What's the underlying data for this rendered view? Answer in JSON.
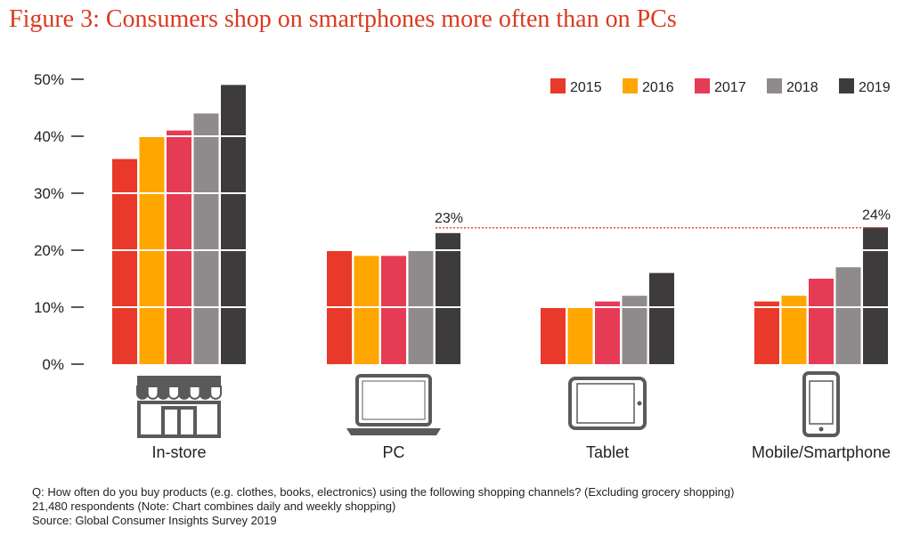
{
  "chart_data": {
    "type": "bar",
    "title": "Figure 3: Consumers shop on smartphones more often than on PCs",
    "categories": [
      "In-store",
      "PC",
      "Tablet",
      "Mobile/Smartphone"
    ],
    "series": [
      {
        "name": "2015",
        "color": "#e8392a",
        "values": [
          36,
          20,
          10,
          11
        ]
      },
      {
        "name": "2016",
        "color": "#ffa600",
        "values": [
          40,
          19,
          10,
          12
        ]
      },
      {
        "name": "2017",
        "color": "#e63b55",
        "values": [
          41,
          19,
          11,
          15
        ]
      },
      {
        "name": "2018",
        "color": "#8f8b8c",
        "values": [
          44,
          20,
          12,
          17
        ]
      },
      {
        "name": "2019",
        "color": "#3d3b3c",
        "values": [
          49,
          23,
          16,
          24
        ]
      }
    ],
    "yticks": [
      "0%",
      "10%",
      "20%",
      "30%",
      "40%",
      "50%"
    ],
    "ylim": [
      0,
      50
    ],
    "legend_position": "top-right",
    "annotations": [
      {
        "text": "23%",
        "category": "PC",
        "series": "2019"
      },
      {
        "text": "24%",
        "category": "Mobile/Smartphone",
        "series": "2019"
      }
    ],
    "category_icons": [
      "store-icon",
      "laptop-icon",
      "tablet-icon",
      "smartphone-icon"
    ]
  },
  "notes": [
    "Q: How often do you buy products (e.g. clothes, books, electronics) using the following shopping channels? (Excluding grocery shopping)",
    "21,480 respondents (Note: Chart combines daily and weekly shopping)",
    "Source: Global Consumer Insights Survey 2019"
  ],
  "colors": {
    "title": "#d93a1f",
    "icon": "#5a5a5a",
    "guide": "#e8392a"
  }
}
